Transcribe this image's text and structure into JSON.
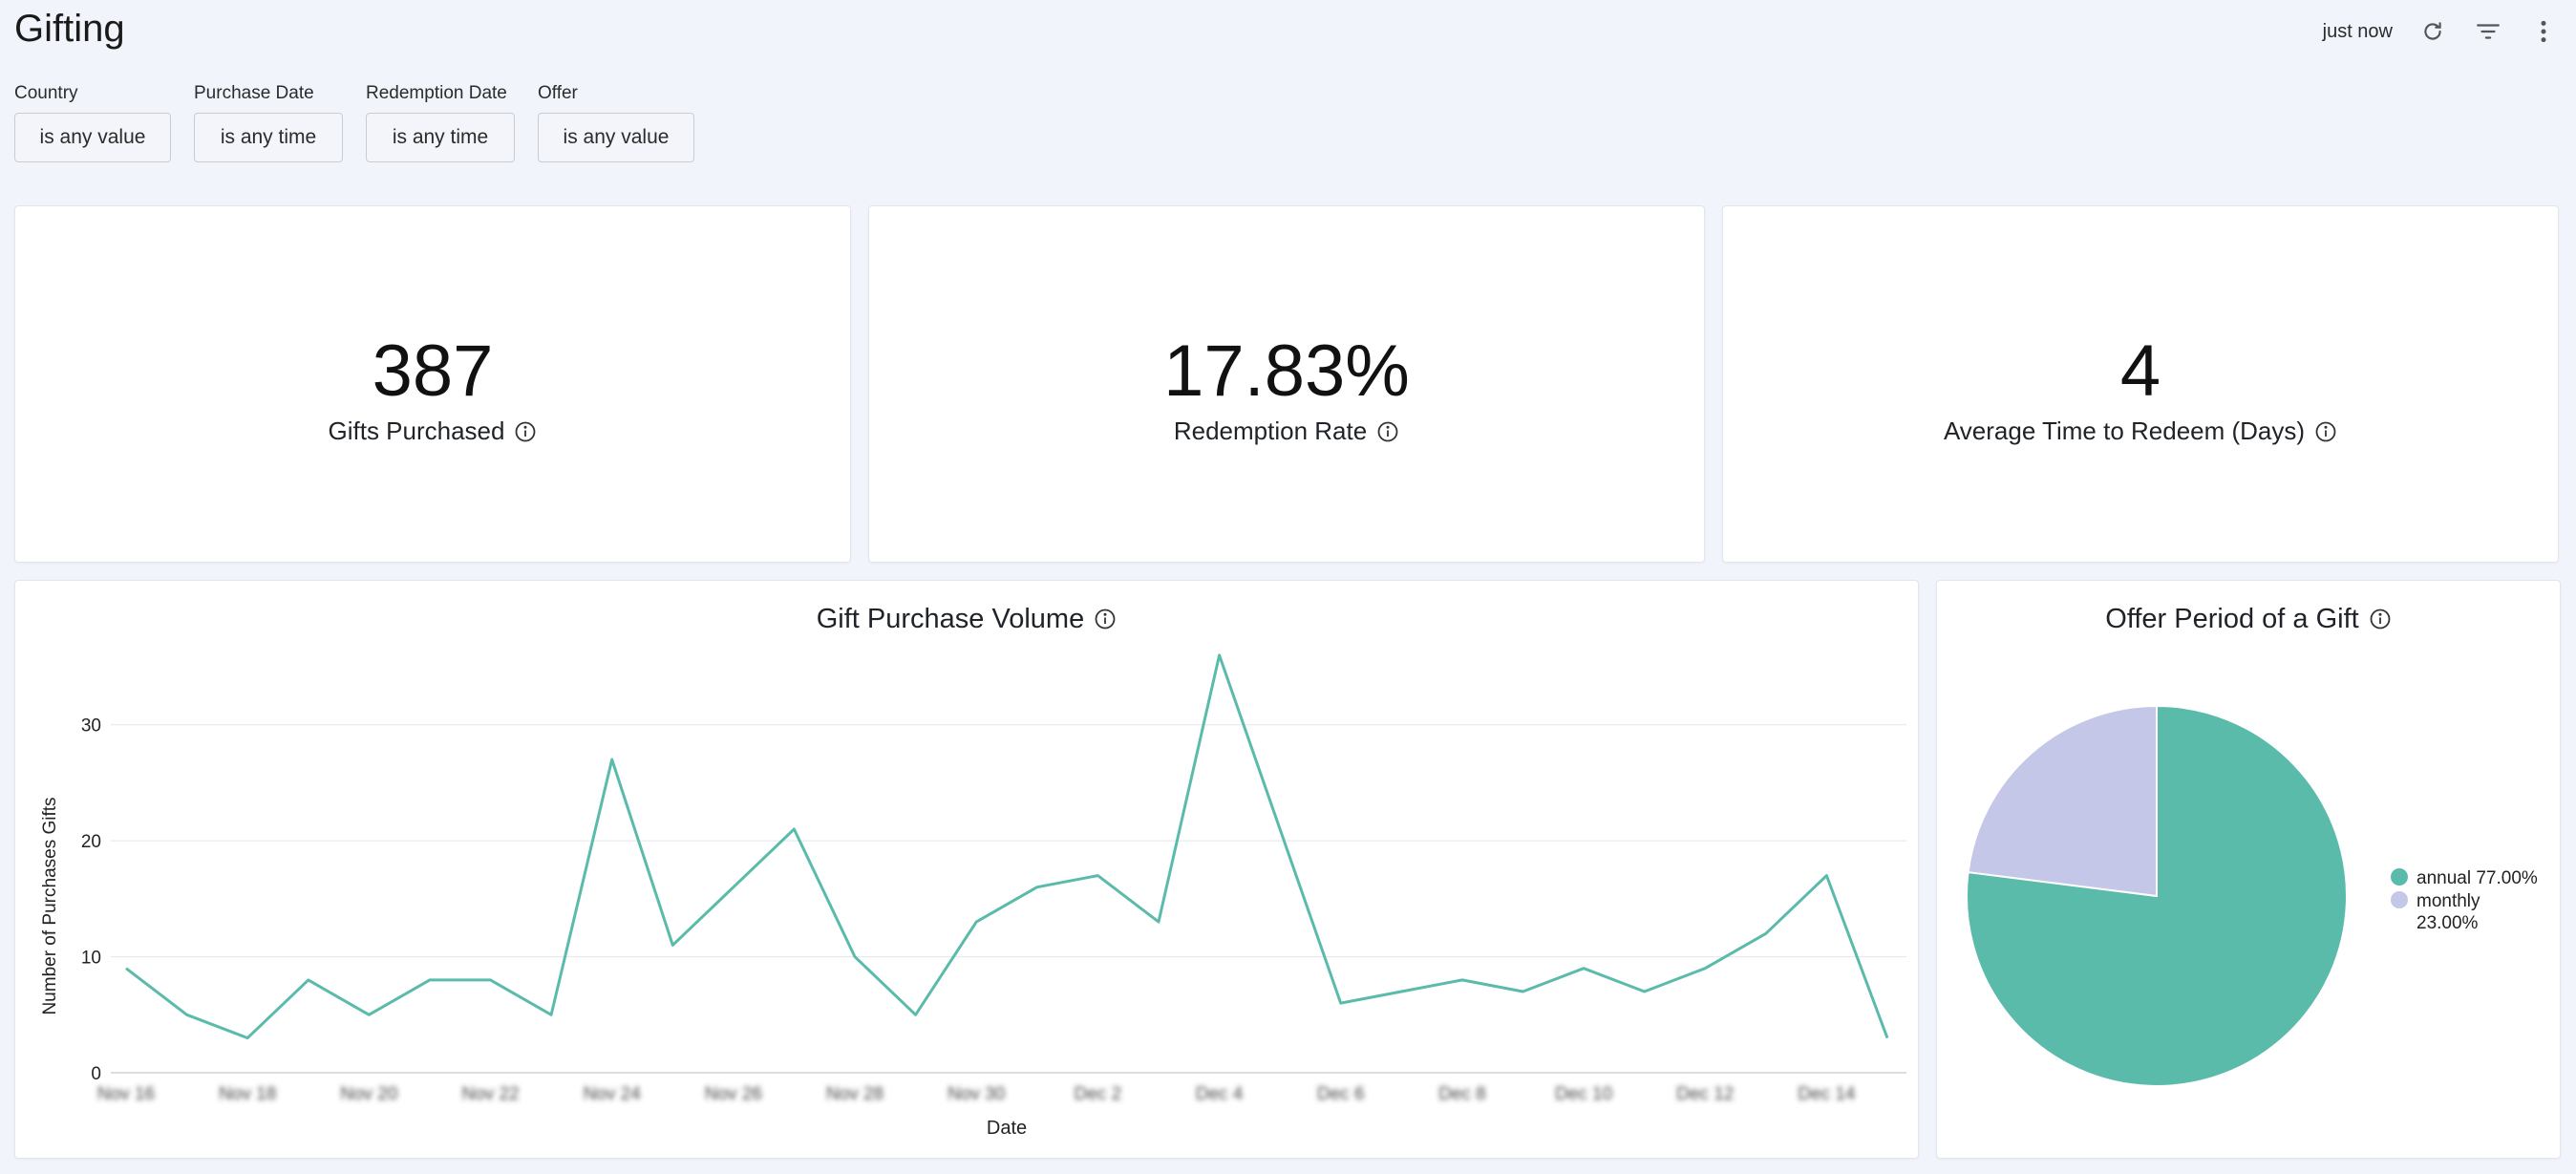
{
  "page": {
    "title": "Gifting",
    "updated": "just now"
  },
  "icons": {
    "refresh": "refresh-icon",
    "filter": "filter-lines-icon",
    "more": "more-vertical-icon",
    "info": "info-icon"
  },
  "filters": [
    {
      "label": "Country",
      "value": "is any value"
    },
    {
      "label": "Purchase Date",
      "value": "is any time"
    },
    {
      "label": "Redemption Date",
      "value": "is any time"
    },
    {
      "label": "Offer",
      "value": "is any value"
    }
  ],
  "kpis": [
    {
      "value": "387",
      "label": "Gifts Purchased"
    },
    {
      "value": "17.83%",
      "label": "Redemption Rate"
    },
    {
      "value": "4",
      "label": "Average Time to Redeem (Days)"
    }
  ],
  "colors": {
    "accent": "#5bbbab",
    "secondary": "#c5c7e8",
    "background": "#f1f4fb",
    "grid": "#e3e5ea"
  },
  "chart_data": [
    {
      "type": "line",
      "title": "Gift Purchase Volume",
      "xlabel": "Date",
      "ylabel": "Number of Purchases Gifts",
      "ylim": [
        0,
        35
      ],
      "yticks": [
        0,
        10,
        20,
        30
      ],
      "xtick_labels": [
        "Nov 16",
        "Nov 18",
        "Nov 20",
        "Nov 22",
        "Nov 24",
        "Nov 26",
        "Nov 28",
        "Nov 30",
        "Dec 2",
        "Dec 4",
        "Dec 6",
        "Dec 8",
        "Dec 10",
        "Dec 12",
        "Dec 14"
      ],
      "xtick_labels_blurred": true,
      "grid": true,
      "x": [
        "Nov 16",
        "Nov 17",
        "Nov 18",
        "Nov 19",
        "Nov 20",
        "Nov 21",
        "Nov 22",
        "Nov 23",
        "Nov 24",
        "Nov 25",
        "Nov 26",
        "Nov 27",
        "Nov 28",
        "Nov 29",
        "Nov 30",
        "Dec 1",
        "Dec 2",
        "Dec 3",
        "Dec 4",
        "Dec 5",
        "Dec 6",
        "Dec 7",
        "Dec 8",
        "Dec 9",
        "Dec 10",
        "Dec 11",
        "Dec 12",
        "Dec 13",
        "Dec 14",
        "Dec 15"
      ],
      "series": [
        {
          "values": [
            9,
            5,
            3,
            8,
            5,
            8,
            8,
            5,
            27,
            11,
            16,
            21,
            10,
            5,
            13,
            16,
            17,
            13,
            36,
            21,
            6,
            7,
            8,
            7,
            9,
            7,
            9,
            12,
            17,
            3
          ],
          "color": "#5bbbab"
        }
      ]
    },
    {
      "type": "pie",
      "title": "Offer Period of a Gift",
      "legend_position": "right",
      "slices": [
        {
          "label": "annual",
          "value": 77.0,
          "display": "annual 77.00%",
          "color": "#5bbbab"
        },
        {
          "label": "monthly",
          "value": 23.0,
          "display_line1": "monthly",
          "display_line2": "23.00%",
          "color": "#c5c7e8"
        }
      ]
    }
  ]
}
